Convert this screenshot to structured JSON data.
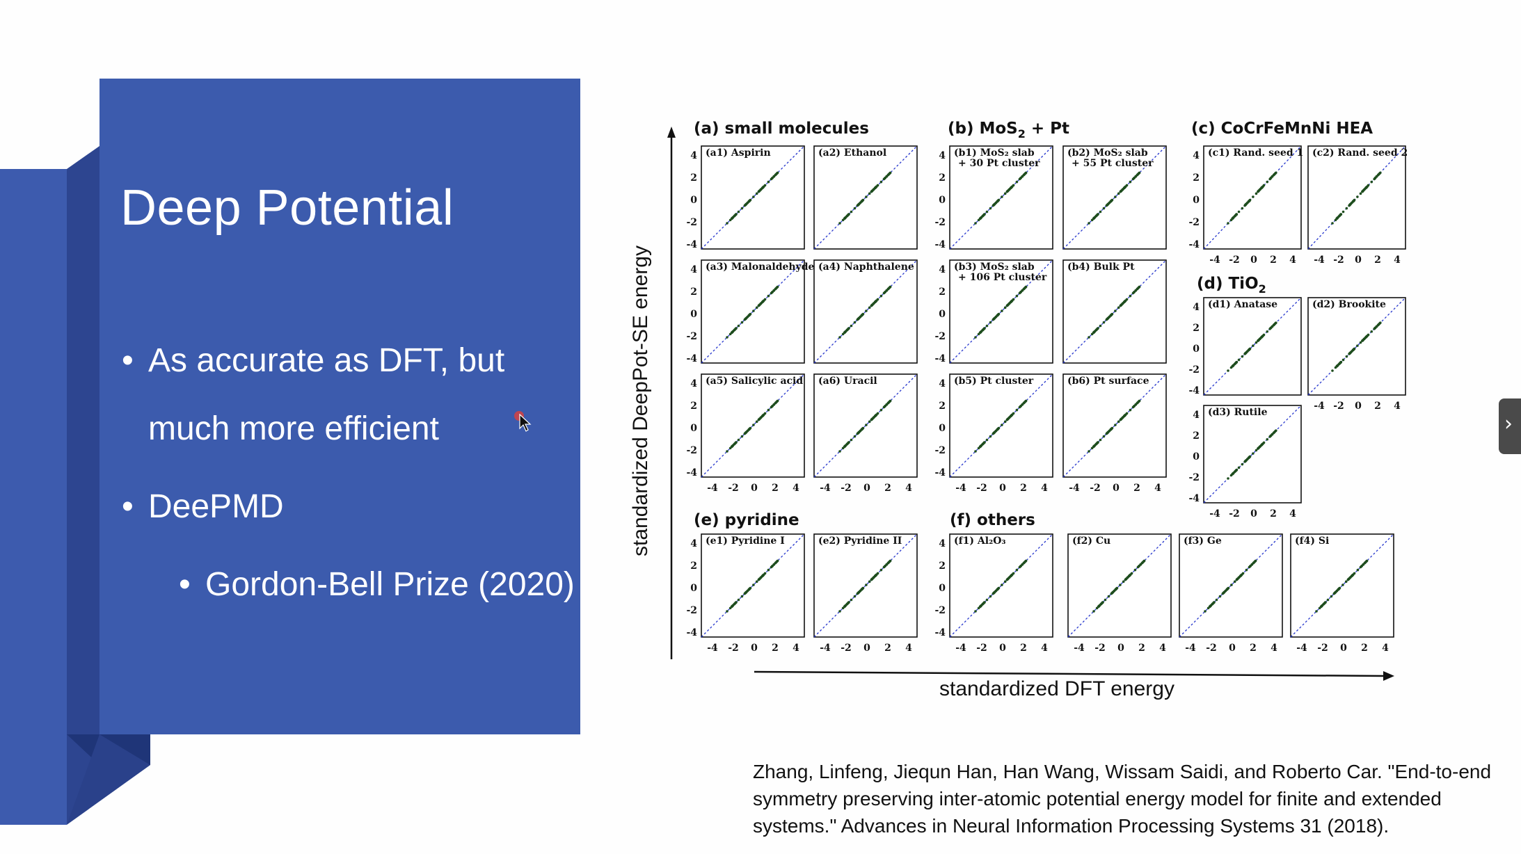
{
  "slide": {
    "title": "Deep Potential",
    "bullets": [
      {
        "line1": "As accurate as DFT, but",
        "line2": "much more efficient"
      },
      {
        "line1": "DeePMD"
      },
      {
        "line1": "Gordon-Bell Prize (2020)"
      }
    ],
    "bullet_glyph": "•",
    "citation": "Zhang, Linfeng, Jiequn Han, Han Wang, Wissam Saidi, and Roberto Car. \"End-to-end symmetry preserving inter-atomic potential energy model for finite and extended systems.\" Advances in Neural Information Processing Systems 31 (2018).",
    "next_icon": "chevron-right-icon"
  },
  "figure": {
    "x_axis_title": "standardized DFT energy",
    "y_axis_title": "standardized DeepPot-SE energy",
    "sections": {
      "a": "(a) small molecules",
      "b_prefix": "(b) MoS",
      "b_sub": "2",
      "b_suffix": " + Pt",
      "c": "(c) CoCrFeMnNi HEA",
      "d_prefix": "(d) TiO",
      "d_sub": "2",
      "e": "(e) pyridine",
      "f": "(f) others"
    },
    "ticks": [
      "-4",
      "-2",
      "0",
      "2",
      "4"
    ],
    "y_ticks": [
      "4",
      "2",
      "0",
      "-2",
      "-4"
    ],
    "panels": {
      "a1": "(a1) Aspirin",
      "a2": "(a2) Ethanol",
      "a3": "(a3) Malonaldehyde",
      "a4": "(a4) Naphthalene",
      "a5": "(a5) Salicylic acid",
      "a6": "(a6) Uracil",
      "b1_l1": "(b1) MoS₂ slab",
      "b1_l2": "+ 30 Pt cluster",
      "b2_l1": "(b2) MoS₂ slab",
      "b2_l2": "+ 55 Pt cluster",
      "b3_l1": "(b3) MoS₂ slab",
      "b3_l2": "+ 106 Pt cluster",
      "b4": "(b4) Bulk Pt",
      "b5": "(b5) Pt cluster",
      "b6": "(b6) Pt surface",
      "c1": "(c1) Rand. seed 1",
      "c2": "(c2) Rand. seed 2",
      "d1": "(d1) Anatase",
      "d2": "(d2) Brookite",
      "d3": "(d3) Rutile",
      "e1": "(e1) Pyridine I",
      "e2": "(e2) Pyridine II",
      "f1": "(f1) Al₂O₃",
      "f2": "(f2) Cu",
      "f3": "(f3) Ge",
      "f4": "(f4) Si"
    },
    "colors": {
      "points": "#1e4d1e",
      "diagonal": "#2233cc",
      "panel_blue": "#3c5bad"
    }
  }
}
